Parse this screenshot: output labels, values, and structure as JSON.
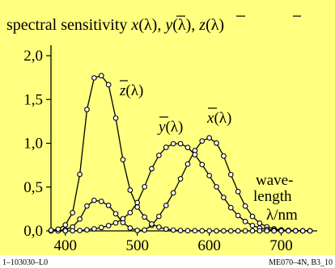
{
  "chart_data": {
    "type": "line",
    "title": "spectral sensitivity x̄(λ), ȳ(λ), z̄(λ)",
    "title_parts": [
      "spectral sensitivity ",
      "x",
      "(λ), ",
      "y",
      "(λ), ",
      "z",
      "(λ)"
    ],
    "xlabel_lines": [
      "wave-",
      "length",
      "λ/nm"
    ],
    "xlim": [
      380,
      750
    ],
    "ylim": [
      0.0,
      2.0
    ],
    "x_ticks": [
      400,
      500,
      600,
      700
    ],
    "y_ticks": [
      0.0,
      0.5,
      1.0,
      1.5,
      2.0
    ],
    "x_tick_labels": [
      "400",
      "500",
      "600",
      "700"
    ],
    "y_tick_labels": [
      "0,0",
      "0,5",
      "1,0",
      "1,5",
      "2,0"
    ],
    "grid": false,
    "x": [
      380,
      390,
      400,
      410,
      420,
      430,
      440,
      450,
      460,
      470,
      480,
      490,
      500,
      510,
      520,
      530,
      540,
      550,
      560,
      570,
      580,
      590,
      600,
      610,
      620,
      630,
      640,
      650,
      660,
      670,
      680,
      690,
      700,
      710,
      720,
      730,
      740
    ],
    "series": [
      {
        "name": "x(λ)",
        "values": [
          0.0014,
          0.0042,
          0.0143,
          0.0435,
          0.1344,
          0.2839,
          0.3483,
          0.3362,
          0.2908,
          0.1954,
          0.0956,
          0.032,
          0.0049,
          0.0093,
          0.0633,
          0.1655,
          0.2904,
          0.4334,
          0.5945,
          0.7621,
          0.9163,
          1.0263,
          1.0622,
          1.0026,
          0.8544,
          0.6424,
          0.4479,
          0.2835,
          0.1649,
          0.0874,
          0.0468,
          0.0227,
          0.0114,
          0.0058,
          0.0029,
          0.0014,
          0.0007
        ]
      },
      {
        "name": "y(λ)",
        "values": [
          0.0,
          0.0001,
          0.0004,
          0.0012,
          0.004,
          0.0116,
          0.023,
          0.038,
          0.06,
          0.091,
          0.139,
          0.208,
          0.323,
          0.503,
          0.71,
          0.862,
          0.954,
          0.995,
          0.995,
          0.952,
          0.87,
          0.757,
          0.631,
          0.503,
          0.381,
          0.265,
          0.175,
          0.107,
          0.061,
          0.032,
          0.017,
          0.0082,
          0.0041,
          0.0021,
          0.001,
          0.0005,
          0.0003
        ]
      },
      {
        "name": "z(λ)",
        "values": [
          0.0065,
          0.0201,
          0.0679,
          0.2074,
          0.6456,
          1.3856,
          1.7471,
          1.7721,
          1.6692,
          1.2876,
          0.813,
          0.4652,
          0.272,
          0.1582,
          0.0782,
          0.0422,
          0.0203,
          0.0087,
          0.0039,
          0.0021,
          0.0017,
          0.0011,
          0.0008,
          0.0003,
          0.0002,
          0.0,
          0.0,
          0.0,
          0.0,
          0.0,
          0.0,
          0.0,
          0.0,
          0.0,
          0.0,
          0.0,
          0.0
        ]
      }
    ],
    "series_labels": [
      {
        "letter": "z",
        "suffix": "(λ)"
      },
      {
        "letter": "y",
        "suffix": "(λ)"
      },
      {
        "letter": "x",
        "suffix": "(λ)"
      }
    ]
  },
  "footer": {
    "left": "1–103030–L0",
    "right": "ME070–4N, B3_10"
  },
  "colors": {
    "background": "#ffff80",
    "line": "#000000",
    "marker_fill": "#ffffff"
  }
}
